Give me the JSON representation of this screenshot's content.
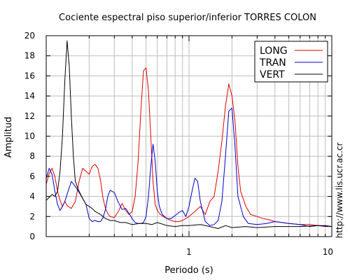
{
  "chart_data": {
    "type": "line",
    "title": "Cociente espectral piso superior/inferior  TORRES COLON",
    "xlabel": "Periodo (s)",
    "ylabel": "Amplitud",
    "side_text": "http://www.lis.ucr.ac.cr",
    "x_scale": "log",
    "xlim": [
      0.1,
      10
    ],
    "ylim": [
      0,
      20
    ],
    "x_tick_labels": [
      {
        "value": 1,
        "label": "1"
      },
      {
        "value": 10,
        "label": "10"
      }
    ],
    "y_ticks": [
      0,
      2,
      4,
      6,
      8,
      10,
      12,
      14,
      16,
      18,
      20
    ],
    "grid": true,
    "legend_position": "top-right",
    "series": [
      {
        "name": "LONG",
        "color": "#e00000",
        "x": [
          0.1,
          0.105,
          0.11,
          0.115,
          0.12,
          0.125,
          0.13,
          0.135,
          0.14,
          0.15,
          0.16,
          0.17,
          0.18,
          0.19,
          0.2,
          0.21,
          0.22,
          0.23,
          0.24,
          0.25,
          0.26,
          0.27,
          0.28,
          0.3,
          0.32,
          0.34,
          0.36,
          0.38,
          0.4,
          0.42,
          0.44,
          0.46,
          0.48,
          0.5,
          0.52,
          0.54,
          0.56,
          0.58,
          0.6,
          0.63,
          0.66,
          0.7,
          0.75,
          0.8,
          0.85,
          0.9,
          0.95,
          1.0,
          1.1,
          1.2,
          1.3,
          1.4,
          1.5,
          1.6,
          1.7,
          1.8,
          1.9,
          2.0,
          2.1,
          2.2,
          2.3,
          2.5,
          2.7,
          3.0,
          3.3,
          3.6,
          4.0,
          4.5,
          5.0,
          6.0,
          7.0,
          8.0,
          9.0,
          10.0
        ],
        "y": [
          5.2,
          6.3,
          6.8,
          6.0,
          4.5,
          3.6,
          3.0,
          3.5,
          3.1,
          2.8,
          3.5,
          5.5,
          6.8,
          6.5,
          6.2,
          7.0,
          7.2,
          6.8,
          5.6,
          3.8,
          2.8,
          2.3,
          2.0,
          1.9,
          2.5,
          3.3,
          2.6,
          2.2,
          2.5,
          4.0,
          7.5,
          12.5,
          16.5,
          16.8,
          14.5,
          10.0,
          5.5,
          3.2,
          2.6,
          2.2,
          2.0,
          1.8,
          1.6,
          1.5,
          1.5,
          1.6,
          1.8,
          2.0,
          2.5,
          3.0,
          2.2,
          3.5,
          4.0,
          6.5,
          9.5,
          13.0,
          15.2,
          14.0,
          11.5,
          7.0,
          4.5,
          3.0,
          2.2,
          2.0,
          1.8,
          1.7,
          1.5,
          1.4,
          1.3,
          1.2,
          1.2,
          1.1,
          1.0,
          1.0
        ]
      },
      {
        "name": "TRAN",
        "color": "#0000cc",
        "x": [
          0.1,
          0.105,
          0.11,
          0.115,
          0.12,
          0.125,
          0.13,
          0.135,
          0.14,
          0.15,
          0.16,
          0.17,
          0.18,
          0.19,
          0.2,
          0.21,
          0.22,
          0.23,
          0.24,
          0.25,
          0.26,
          0.27,
          0.28,
          0.3,
          0.32,
          0.34,
          0.36,
          0.38,
          0.4,
          0.42,
          0.44,
          0.46,
          0.48,
          0.5,
          0.52,
          0.54,
          0.56,
          0.58,
          0.6,
          0.62,
          0.65,
          0.7,
          0.75,
          0.8,
          0.85,
          0.9,
          0.95,
          1.0,
          1.05,
          1.1,
          1.15,
          1.2,
          1.3,
          1.4,
          1.5,
          1.6,
          1.7,
          1.8,
          1.9,
          2.0,
          2.1,
          2.2,
          2.4,
          2.6,
          3.0,
          3.5,
          4.0,
          5.0,
          6.0,
          7.0,
          8.0,
          9.0,
          10.0
        ],
        "y": [
          5.8,
          6.8,
          6.2,
          4.5,
          3.2,
          2.6,
          3.0,
          3.5,
          4.2,
          5.5,
          5.0,
          4.4,
          3.8,
          3.2,
          1.8,
          1.5,
          1.6,
          1.5,
          1.5,
          1.9,
          2.7,
          4.0,
          4.6,
          4.4,
          3.4,
          2.7,
          2.8,
          2.3,
          1.8,
          1.4,
          1.3,
          1.3,
          1.4,
          2.0,
          4.0,
          7.0,
          9.2,
          7.5,
          4.5,
          3.0,
          2.2,
          1.8,
          1.8,
          2.1,
          2.4,
          2.6,
          2.0,
          3.0,
          4.5,
          5.8,
          5.5,
          3.5,
          1.5,
          1.1,
          1.2,
          1.6,
          3.5,
          8.0,
          12.5,
          12.8,
          9.0,
          4.0,
          2.0,
          1.3,
          1.2,
          1.3,
          1.5,
          1.3,
          1.2,
          1.0,
          1.1,
          1.1,
          1.0
        ]
      },
      {
        "name": "VERT",
        "color": "#000000",
        "x": [
          0.1,
          0.105,
          0.11,
          0.115,
          0.12,
          0.125,
          0.13,
          0.135,
          0.14,
          0.145,
          0.15,
          0.155,
          0.16,
          0.17,
          0.18,
          0.19,
          0.2,
          0.21,
          0.22,
          0.24,
          0.26,
          0.28,
          0.3,
          0.33,
          0.36,
          0.4,
          0.45,
          0.5,
          0.55,
          0.6,
          0.7,
          0.8,
          0.9,
          1.0,
          1.2,
          1.4,
          1.6,
          1.8,
          2.0,
          2.5,
          3.0,
          4.0,
          5.0,
          6.0,
          8.0,
          10.0
        ],
        "y": [
          3.6,
          3.9,
          4.2,
          4.0,
          4.5,
          6.5,
          10.0,
          15.5,
          19.5,
          17.0,
          12.0,
          8.0,
          5.5,
          4.5,
          3.8,
          3.2,
          3.0,
          2.8,
          2.5,
          2.2,
          1.8,
          1.6,
          1.6,
          1.4,
          1.4,
          1.2,
          1.3,
          1.3,
          1.2,
          1.4,
          1.1,
          1.0,
          1.1,
          1.1,
          1.2,
          1.0,
          0.8,
          1.1,
          0.9,
          1.0,
          0.9,
          1.0,
          1.0,
          1.0,
          1.1,
          1.0
        ]
      }
    ]
  }
}
